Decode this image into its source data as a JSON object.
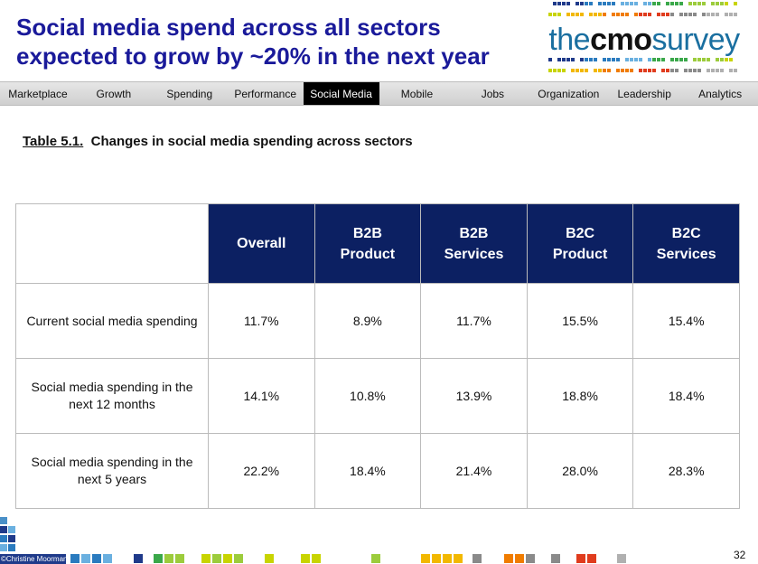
{
  "headline": {
    "line1": "Social media spend across all sectors",
    "line2": "expected to grow by ~20% in the next year"
  },
  "logo": {
    "prefix": "the",
    "bold": "cmo",
    "suffix": "survey"
  },
  "nav": {
    "tabs": [
      {
        "label": "Marketplace",
        "active": false
      },
      {
        "label": "Growth",
        "active": false
      },
      {
        "label": "Spending",
        "active": false
      },
      {
        "label": "Performance",
        "active": false
      },
      {
        "label": "Social Media",
        "active": true
      },
      {
        "label": "Mobile",
        "active": false
      },
      {
        "label": "Jobs",
        "active": false
      },
      {
        "label": "Organization",
        "active": false
      },
      {
        "label": "Leadership",
        "active": false
      },
      {
        "label": "Analytics",
        "active": false
      }
    ]
  },
  "table": {
    "title_num": "Table 5.1.",
    "title_text": "Changes in social media spending across sectors",
    "headers": [
      [
        "Overall"
      ],
      [
        "B2B",
        "Product"
      ],
      [
        "B2B",
        "Services"
      ],
      [
        "B2C",
        "Product"
      ],
      [
        "B2C",
        "Services"
      ]
    ],
    "rows": [
      {
        "label": [
          "Current social media spending"
        ],
        "values": [
          "11.7%",
          "8.9%",
          "11.7%",
          "15.5%",
          "15.4%"
        ]
      },
      {
        "label": [
          "Social media spending  in the",
          "next 12 months"
        ],
        "values": [
          "14.1%",
          "10.8%",
          "13.9%",
          "18.8%",
          "18.4%"
        ]
      },
      {
        "label": [
          "Social media spending  in the",
          "next 5 years"
        ],
        "values": [
          "22.2%",
          "18.4%",
          "21.4%",
          "28.0%",
          "28.3%"
        ]
      }
    ]
  },
  "footer": {
    "credit": "©Christine Moorman",
    "page_number": "32"
  },
  "colors": {
    "headline": "#1a1a9a",
    "header_fill": "#0c2062",
    "active_tab": "#000000",
    "footer_blue": "#1f3a8a"
  }
}
